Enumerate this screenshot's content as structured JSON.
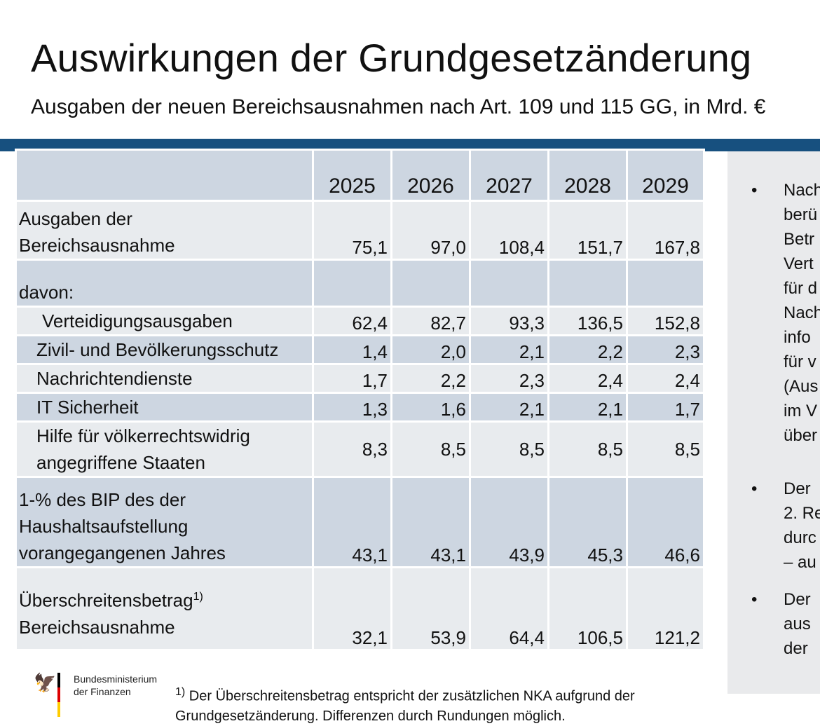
{
  "title": "Auswirkungen der Grundgesetzänderung",
  "subtitle": "Ausgaben der neuen Bereichsausnahmen nach Art. 109 und 115 GG, in Mrd. €",
  "table": {
    "years": [
      "2025",
      "2026",
      "2027",
      "2028",
      "2029"
    ],
    "rows": [
      {
        "label_lines": [
          "Ausgaben der",
          "Bereichsausnahme"
        ],
        "values": [
          "75,1",
          "97,0",
          "108,4",
          "151,7",
          "167,8"
        ]
      },
      {
        "label_lines": [
          "",
          "davon:"
        ],
        "values": [
          "",
          "",
          "",
          "",
          ""
        ]
      },
      {
        "label_lines": [
          "Verteidigungsausgaben"
        ],
        "values": [
          "62,4",
          "82,7",
          "93,3",
          "136,5",
          "152,8"
        ]
      },
      {
        "label_lines": [
          "Zivil- und Bevölkerungsschutz"
        ],
        "values": [
          "1,4",
          "2,0",
          "2,1",
          "2,2",
          "2,3"
        ]
      },
      {
        "label_lines": [
          "Nachrichtendienste"
        ],
        "values": [
          "1,7",
          "2,2",
          "2,3",
          "2,4",
          "2,4"
        ]
      },
      {
        "label_lines": [
          "IT Sicherheit"
        ],
        "values": [
          "1,3",
          "1,6",
          "2,1",
          "2,1",
          "1,7"
        ]
      },
      {
        "label_lines": [
          "Hilfe für völkerrechtswidrig",
          "angegriffene Staaten"
        ],
        "values": [
          "8,3",
          "8,5",
          "8,5",
          "8,5",
          "8,5"
        ]
      },
      {
        "label_lines": [
          "1-% des BIP des der",
          "Haushaltsaufstellung",
          "vorangegangenen Jahres"
        ],
        "values": [
          "43,1",
          "43,1",
          "43,9",
          "45,3",
          "46,6"
        ]
      },
      {
        "label_main": "Überschreitensbetrag",
        "label_sup": "1)",
        "label_line2": "Bereichsausnahme",
        "values": [
          "32,1",
          "53,9",
          "64,4",
          "106,5",
          "121,2"
        ]
      }
    ]
  },
  "side_panel": {
    "bullet_glyph": "•",
    "items": [
      {
        "lines": [
          "Nach",
          "berü",
          "Betr",
          "Vert",
          "für d",
          "Nach",
          "info",
          "für v",
          "(Aus",
          "im V",
          "über"
        ]
      },
      {
        "lines": [
          "Der",
          "2. Re",
          "durc",
          "– au"
        ]
      },
      {
        "lines": [
          "Der",
          "aus",
          "der"
        ]
      }
    ]
  },
  "footer": {
    "ministry_line1": "Bundesministerium",
    "ministry_line2": "der Finanzen",
    "footnote_marker": "1)",
    "footnote_line1": " Der Überschreitensbetrag entspricht der zusätzlichen NKA aufgrund der",
    "footnote_line2": "Grundgesetzänderung. Differenzen durch Rundungen möglich.",
    "eagle_glyph": "🦅",
    "flag_colors": [
      "#000000",
      "#dd0000",
      "#ffcc00"
    ]
  },
  "colors": {
    "accent_bar": "#17507f",
    "row_dark": "#cdd6e1",
    "row_light": "#e8ebee",
    "side_panel": "#e9eaec"
  }
}
